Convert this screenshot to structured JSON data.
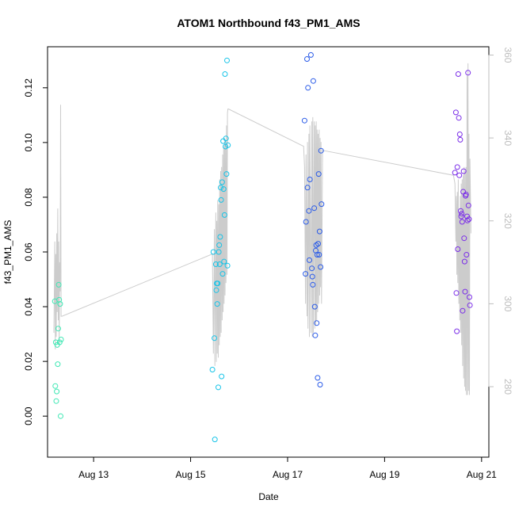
{
  "chart_data": {
    "type": "scatter",
    "title": "ATOM1 Northbound f43_PM1_AMS",
    "xlabel": "Date",
    "ylabel": "f43_PM1_AMS",
    "x_ticks": [
      "Aug 13",
      "Aug 15",
      "Aug 17",
      "Aug 19",
      "Aug 21"
    ],
    "x_tick_days": [
      13,
      15,
      17,
      19,
      21
    ],
    "xlim_days": [
      12.05,
      21.15
    ],
    "ylim": [
      -0.015,
      0.135
    ],
    "y_ticks": [
      0.0,
      0.02,
      0.04,
      0.06,
      0.08,
      0.1,
      0.12
    ],
    "y_tick_labels": [
      "0.00",
      "0.02",
      "0.04",
      "0.06",
      "0.08",
      "0.10",
      "0.12"
    ],
    "y2lim": [
      263,
      362
    ],
    "y2_ticks": [
      280,
      300,
      320,
      340,
      360
    ],
    "y2_tick_labels": [
      "280",
      "300",
      "320",
      "340",
      "360"
    ],
    "grid": false,
    "series": [
      {
        "color": "#3fe8b4",
        "x_days": [
          12.2,
          12.21,
          12.22,
          12.23,
          12.24,
          12.25,
          12.26,
          12.27,
          12.28,
          12.29,
          12.3,
          12.31,
          12.32,
          12.33
        ],
        "values": [
          0.042,
          0.011,
          0.027,
          0.0055,
          0.009,
          0.026,
          0.019,
          0.032,
          0.048,
          0.0425,
          0.027,
          0.041,
          0.0,
          0.028
        ]
      },
      {
        "color": "#17c4e8",
        "x_days": [
          15.45,
          15.47,
          15.49,
          15.5,
          15.52,
          15.53,
          15.54,
          15.55,
          15.56,
          15.57,
          15.58,
          15.59,
          15.6,
          15.61,
          15.62,
          15.63,
          15.64,
          15.65,
          15.66,
          15.67,
          15.68,
          15.69,
          15.7,
          15.71,
          15.72,
          15.73,
          15.74,
          15.75,
          15.76,
          15.77
        ],
        "values": [
          0.017,
          0.06,
          0.0285,
          -0.0085,
          0.0555,
          0.046,
          0.0485,
          0.041,
          0.0485,
          0.0105,
          0.06,
          0.0625,
          0.0555,
          0.0655,
          0.0835,
          0.079,
          0.0145,
          0.0855,
          0.052,
          0.1005,
          0.083,
          0.0565,
          0.0735,
          0.125,
          0.0985,
          0.1015,
          0.0885,
          0.13,
          0.055,
          0.099
        ]
      },
      {
        "color": "#2a5be8",
        "x_days": [
          17.35,
          17.37,
          17.38,
          17.4,
          17.41,
          17.42,
          17.44,
          17.45,
          17.46,
          17.48,
          17.5,
          17.51,
          17.52,
          17.53,
          17.55,
          17.56,
          17.57,
          17.58,
          17.59,
          17.6,
          17.61,
          17.62,
          17.63,
          17.64,
          17.65,
          17.66,
          17.67,
          17.68,
          17.69,
          17.7
        ],
        "values": [
          0.108,
          0.052,
          0.071,
          0.1305,
          0.0835,
          0.12,
          0.075,
          0.057,
          0.0865,
          0.132,
          0.054,
          0.051,
          0.048,
          0.1225,
          0.076,
          0.04,
          0.0295,
          0.0605,
          0.0625,
          0.034,
          0.059,
          0.014,
          0.063,
          0.0885,
          0.059,
          0.0675,
          0.0115,
          0.0545,
          0.097,
          0.0775
        ]
      },
      {
        "color": "#7b2ee8",
        "x_days": [
          20.45,
          20.47,
          20.48,
          20.49,
          20.5,
          20.51,
          20.52,
          20.53,
          20.54,
          20.55,
          20.56,
          20.57,
          20.58,
          20.59,
          20.6,
          20.61,
          20.62,
          20.63,
          20.64,
          20.65,
          20.66,
          20.67,
          20.68,
          20.69,
          20.7,
          20.71,
          20.72,
          20.73,
          20.74,
          20.75,
          20.76
        ],
        "values": [
          0.089,
          0.111,
          0.045,
          0.031,
          0.091,
          0.061,
          0.125,
          0.109,
          0.088,
          0.103,
          0.101,
          0.075,
          0.073,
          0.074,
          0.071,
          0.0385,
          0.082,
          0.0895,
          0.065,
          0.0565,
          0.0455,
          0.0805,
          0.081,
          0.059,
          0.073,
          0.0715,
          0.1255,
          0.077,
          0.072,
          0.0435,
          0.0405
        ]
      }
    ],
    "secondary_series": {
      "color": "#cccccc",
      "axis": "right",
      "x_days": [
        12.18,
        12.2,
        12.21,
        12.22,
        12.23,
        12.24,
        12.25,
        12.26,
        12.27,
        12.28,
        12.29,
        12.3,
        12.31,
        12.32,
        12.33,
        12.35,
        15.45,
        15.47,
        15.49,
        15.5,
        15.52,
        15.53,
        15.54,
        15.55,
        15.56,
        15.57,
        15.58,
        15.59,
        15.6,
        15.61,
        15.62,
        15.63,
        15.64,
        15.65,
        15.66,
        15.67,
        15.68,
        15.69,
        15.7,
        15.71,
        15.72,
        15.73,
        15.74,
        15.75,
        15.76,
        15.77,
        15.78,
        17.33,
        17.35,
        17.37,
        17.38,
        17.4,
        17.41,
        17.42,
        17.44,
        17.45,
        17.46,
        17.48,
        17.5,
        17.51,
        17.52,
        17.53,
        17.55,
        17.56,
        17.57,
        17.58,
        17.59,
        17.6,
        17.61,
        17.62,
        17.63,
        17.64,
        17.65,
        17.66,
        17.67,
        17.68,
        17.69,
        17.7,
        17.72,
        20.42,
        20.45,
        20.47,
        20.48,
        20.49,
        20.5,
        20.51,
        20.52,
        20.53,
        20.54,
        20.55,
        20.56,
        20.57,
        20.58,
        20.59,
        20.6,
        20.61,
        20.62,
        20.63,
        20.64,
        20.65,
        20.66,
        20.67,
        20.68,
        20.69,
        20.7,
        20.71,
        20.72,
        20.73,
        20.74,
        20.75,
        20.76,
        20.78
      ],
      "values": [
        293,
        315,
        289,
        312,
        292,
        317,
        298,
        323,
        296,
        315,
        290,
        310,
        303,
        348,
        297,
        297,
        312,
        288,
        318,
        285,
        322,
        286,
        320,
        288,
        325,
        287,
        324,
        290,
        330,
        292,
        332,
        293,
        333,
        296,
        336,
        298,
        338,
        300,
        340,
        302,
        339,
        305,
        343,
        307,
        346,
        347,
        347,
        338,
        333,
        300,
        336,
        297,
        339,
        294,
        341,
        292,
        343,
        293,
        344,
        292,
        345,
        293,
        344,
        294,
        343,
        295,
        344,
        296,
        342,
        298,
        341,
        300,
        342,
        302,
        340,
        304,
        339,
        300,
        337,
        331,
        329,
        315,
        326,
        307,
        327,
        305,
        330,
        300,
        322,
        296,
        326,
        293,
        329,
        290,
        330,
        285,
        331,
        282,
        333,
        280,
        332,
        279,
        333,
        278,
        355,
        278,
        358,
        279,
        341,
        278,
        335,
        317
      ]
    }
  }
}
